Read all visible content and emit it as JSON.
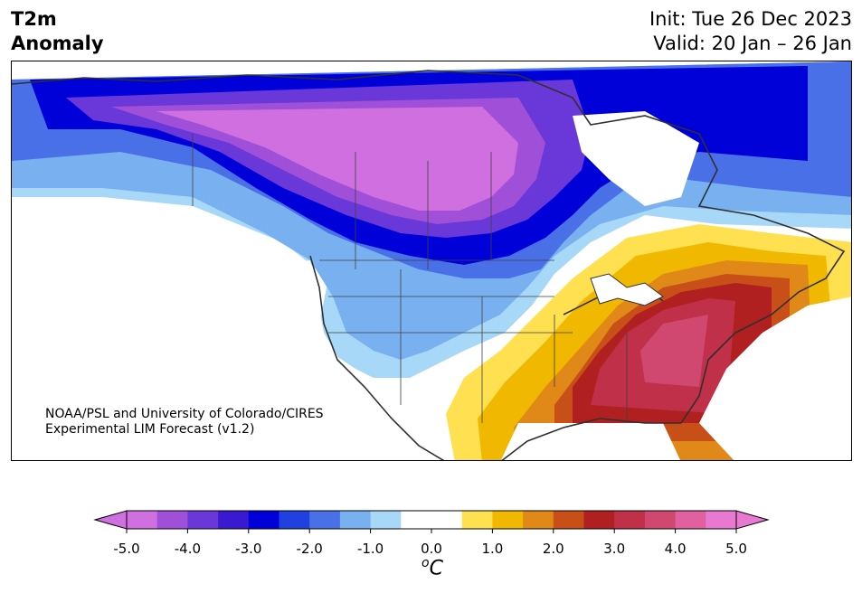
{
  "title": {
    "line1": "T2m",
    "line2": "Anomaly"
  },
  "dates": {
    "init": "Init: Tue 26 Dec 2023",
    "valid": "Valid: 20 Jan – 26 Jan"
  },
  "credit": {
    "line1": "NOAA/PSL and University of Colorado/CIRES",
    "line2": "Experimental LIM Forecast (v1.2)"
  },
  "colorbar": {
    "labels": [
      "-5.0",
      "-4.0",
      "-3.0",
      "-2.0",
      "-1.0",
      "0.0",
      "1.0",
      "2.0",
      "3.0",
      "4.0",
      "5.0"
    ],
    "colors": [
      "#d070e0",
      "#a050d8",
      "#6a38d8",
      "#3a1ad0",
      "#0000d8",
      "#2040e0",
      "#4a70e8",
      "#78b0f0",
      "#a8d8f8",
      "#ffffff",
      "#ffffff",
      "#ffe050",
      "#f0b800",
      "#e08818",
      "#c85018",
      "#b02020",
      "#c03048",
      "#d04870",
      "#e060a0",
      "#e878d0"
    ],
    "unit_base": "C",
    "unit_sup": "o"
  },
  "palette": {
    "cold_extreme": "#d070e0",
    "deep_blue": "#0000d8",
    "light_blue": "#a8d8f8",
    "warm_yellow": "#ffe050",
    "warm_red": "#c03048",
    "coast": "#303030"
  }
}
